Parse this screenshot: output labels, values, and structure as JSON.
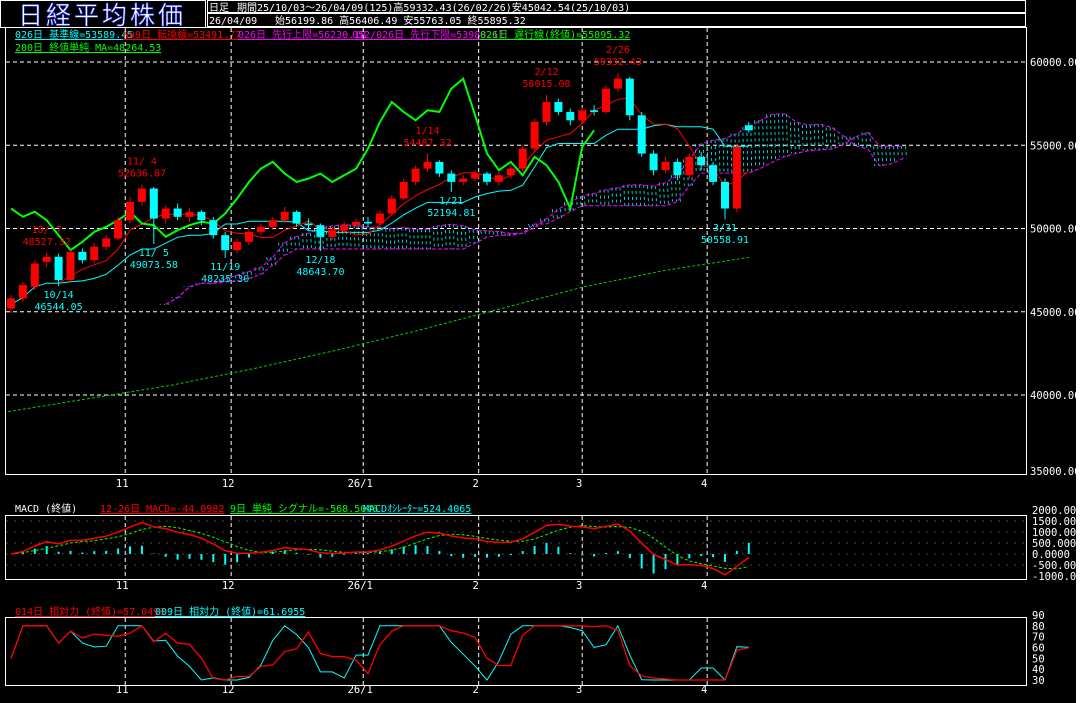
{
  "header": {
    "title": "日経平均株価",
    "period_type": "日足",
    "period_info": "期間25/10/03～26/04/09(125)高59332.43(26/02/26)安45042.54(25/10/03)",
    "last_date": "26/04/09",
    "last_ohlc": "始56199.86 高56406.49 安55763.05 終55895.32"
  },
  "legend": {
    "kijun": "026日 基準線=53589.45",
    "tenkan": "009日 転換線=53491.77",
    "span_a": "026日 先行上限=56230.18",
    "span_b": "052/026日 先行下限=53988.11",
    "chikou": "026日 遅行線(終値)=55895.32",
    "ma200": "200日 終値単純 MA=48264.53"
  },
  "macd_legend": {
    "title": "MACD (終値)",
    "macd": "12-26日 MACD=-44.0982",
    "signal": "9日 単純 シグナル=-568.5046",
    "osc": "MACDｵｼﾚｰﾀｰ=524.4065"
  },
  "rsi_legend": {
    "rsi14": "014日 相対力 (終値)=57.0493",
    "rsi9": "009日 相対力 (終値)=61.6955"
  },
  "colors": {
    "up": "#ff0000",
    "down": "#00ffff",
    "kijun": "#00ffff",
    "tenkan": "#ff0000",
    "span": "#ff00ff",
    "chikou": "#00ff00",
    "ma200": "#00cc00",
    "grid": "#ffffff"
  },
  "chart_data": [
    {
      "type": "candlestick",
      "title": "日経平均株価",
      "ylim": [
        35000,
        62000
      ],
      "y_ticks": [
        "60000.00",
        "55000.00",
        "50000.00",
        "45000.00",
        "40000.00",
        "35000.00"
      ],
      "x_ticks": [
        {
          "label": "11",
          "bar": 9.6
        },
        {
          "label": "12",
          "bar": 18.5
        },
        {
          "label": "26/1",
          "bar": 29.6
        },
        {
          "label": "2",
          "bar": 39.3
        },
        {
          "label": "3",
          "bar": 48
        },
        {
          "label": "4",
          "bar": 58.5
        }
      ],
      "grid": true,
      "ohlc": [
        [
          45200,
          46000,
          44900,
          45800
        ],
        [
          45800,
          46800,
          45600,
          46600
        ],
        [
          46500,
          48100,
          46300,
          47900
        ],
        [
          48000,
          48527,
          47700,
          48300
        ],
        [
          48300,
          48500,
          46544,
          46900
        ],
        [
          46900,
          48700,
          46800,
          48600
        ],
        [
          48600,
          48800,
          47900,
          48100
        ],
        [
          48100,
          49100,
          47900,
          48900
        ],
        [
          48900,
          49600,
          48700,
          49400
        ],
        [
          49400,
          50700,
          49300,
          50500
        ],
        [
          50500,
          51900,
          50300,
          51600
        ],
        [
          51600,
          52637,
          51400,
          52400
        ],
        [
          52400,
          52500,
          49074,
          50600
        ],
        [
          50600,
          51400,
          50300,
          51200
        ],
        [
          51200,
          51500,
          50500,
          50700
        ],
        [
          50700,
          51200,
          50400,
          51000
        ],
        [
          51000,
          51100,
          50200,
          50500
        ],
        [
          50500,
          50700,
          49400,
          49600
        ],
        [
          49600,
          49800,
          48235,
          48700
        ],
        [
          48700,
          49400,
          48500,
          49200
        ],
        [
          49200,
          50000,
          49000,
          49800
        ],
        [
          49800,
          50300,
          49600,
          50100
        ],
        [
          50100,
          50700,
          49900,
          50500
        ],
        [
          50500,
          51300,
          50300,
          51000
        ],
        [
          51000,
          51100,
          50100,
          50300
        ],
        [
          50300,
          50600,
          49900,
          50200
        ],
        [
          50200,
          50300,
          48644,
          49500
        ],
        [
          49500,
          50100,
          49300,
          49900
        ],
        [
          49900,
          50400,
          49700,
          50200
        ],
        [
          50200,
          50600,
          50000,
          50400
        ],
        [
          50400,
          50700,
          50100,
          50300
        ],
        [
          50300,
          51100,
          50200,
          50900
        ],
        [
          50900,
          52000,
          50800,
          51800
        ],
        [
          51800,
          53000,
          51700,
          52800
        ],
        [
          52800,
          53800,
          52600,
          53600
        ],
        [
          53600,
          54487,
          53400,
          54000
        ],
        [
          54000,
          54100,
          53100,
          53300
        ],
        [
          53300,
          53500,
          52195,
          52800
        ],
        [
          52800,
          53200,
          52600,
          53000
        ],
        [
          53000,
          53500,
          52800,
          53300
        ],
        [
          53300,
          53400,
          52600,
          52800
        ],
        [
          52800,
          53400,
          52600,
          53200
        ],
        [
          53200,
          53800,
          53000,
          53600
        ],
        [
          53600,
          55000,
          53400,
          54800
        ],
        [
          54800,
          56600,
          54600,
          56400
        ],
        [
          56400,
          58015,
          56200,
          57600
        ],
        [
          57600,
          57800,
          56800,
          57000
        ],
        [
          57000,
          57200,
          56200,
          56500
        ],
        [
          56500,
          57300,
          56300,
          57100
        ],
        [
          57100,
          57400,
          56800,
          57000
        ],
        [
          57000,
          58600,
          56900,
          58400
        ],
        [
          58400,
          59332,
          58200,
          59000
        ],
        [
          59000,
          59100,
          56500,
          56800
        ],
        [
          56800,
          57000,
          54300,
          54500
        ],
        [
          54500,
          54700,
          53200,
          53500
        ],
        [
          53500,
          54300,
          53300,
          54000
        ],
        [
          54000,
          54200,
          52900,
          53200
        ],
        [
          53200,
          54500,
          53000,
          54300
        ],
        [
          54300,
          54600,
          53500,
          53800
        ],
        [
          53800,
          54000,
          52600,
          52800
        ],
        [
          52800,
          53000,
          50559,
          51200
        ],
        [
          51200,
          55100,
          51000,
          54900
        ],
        [
          56199,
          56406,
          55763,
          55895
        ]
      ],
      "ma200": [
        39000,
        39800,
        40600,
        41600,
        42700,
        43900,
        45200,
        46500,
        47500,
        48264
      ],
      "annotations": [
        {
          "bar": 3,
          "date": "10/ 7",
          "value": "48527.32",
          "kind": "high",
          "color": "#ff0000"
        },
        {
          "bar": 4,
          "date": "10/14",
          "value": "46544.05",
          "kind": "low",
          "color": "#00ffff"
        },
        {
          "bar": 11,
          "date": "11/ 4",
          "value": "52636.87",
          "kind": "high",
          "color": "#ff0000"
        },
        {
          "bar": 12,
          "date": "11/ 5",
          "value": "49073.58",
          "kind": "low",
          "color": "#00ffff"
        },
        {
          "bar": 18,
          "date": "11/19",
          "value": "48235.30",
          "kind": "low",
          "color": "#00ffff"
        },
        {
          "bar": 26,
          "date": "12/18",
          "value": "48643.70",
          "kind": "low",
          "color": "#00ffff"
        },
        {
          "bar": 35,
          "date": "1/14",
          "value": "54487.32",
          "kind": "high",
          "color": "#ff0000"
        },
        {
          "bar": 37,
          "date": "1/21",
          "value": "52194.81",
          "kind": "low",
          "color": "#00ffff"
        },
        {
          "bar": 45,
          "date": "2/12",
          "value": "58015.08",
          "kind": "high",
          "color": "#ff0000"
        },
        {
          "bar": 51,
          "date": "2/26",
          "value": "59332.43",
          "kind": "high",
          "color": "#ff0000"
        },
        {
          "bar": 60,
          "date": "3/31",
          "value": "50558.91",
          "kind": "low",
          "color": "#00ffff"
        }
      ]
    },
    {
      "type": "line",
      "title": "MACD (終値)",
      "ylim": [
        -1000,
        2000
      ],
      "y_ticks": [
        "2000.000",
        "1500.000",
        "1000.000",
        "500.0000",
        "0.0000",
        "-500.000",
        "-1000.00"
      ]
    },
    {
      "type": "line",
      "title": "相対力",
      "ylim": [
        30,
        90
      ],
      "y_ticks": [
        "90",
        "80",
        "70",
        "60",
        "50",
        "40",
        "30"
      ]
    }
  ]
}
